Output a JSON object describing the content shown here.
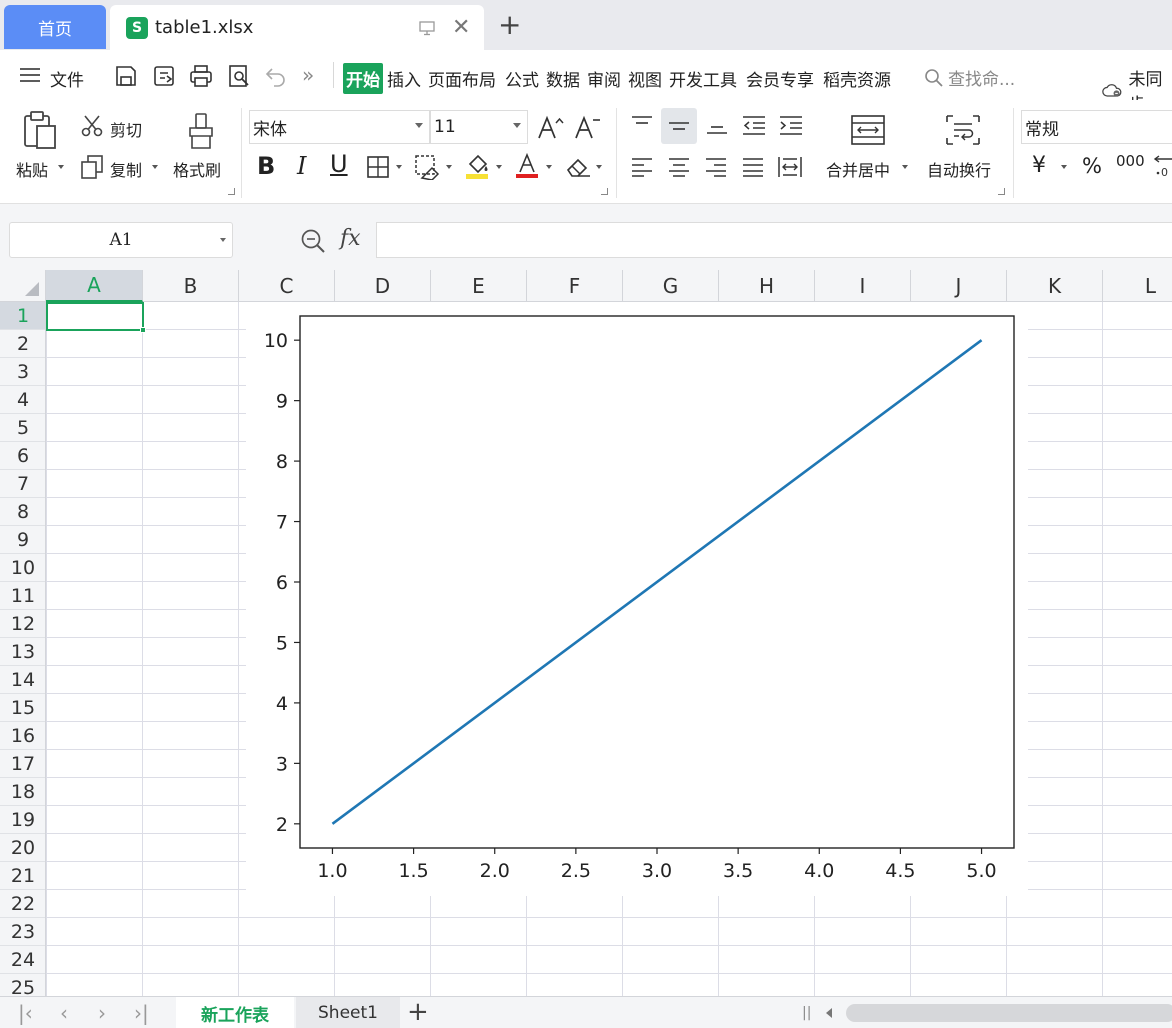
{
  "tabs": {
    "home": "首页",
    "file_name": "table1.xlsx"
  },
  "menu": {
    "file": "文件",
    "items": [
      "开始",
      "插入",
      "页面布局",
      "公式",
      "数据",
      "审阅",
      "视图",
      "开发工具",
      "会员专享",
      "稻壳资源"
    ],
    "active_index": 0,
    "search_placeholder": "查找命...",
    "cloud_status": "未同步"
  },
  "ribbon": {
    "paste": "粘贴",
    "cut": "剪切",
    "copy": "复制",
    "format_painter": "格式刷",
    "font_name": "宋体",
    "font_size": "11",
    "merge_center": "合并居中",
    "wrap_text": "自动换行",
    "number_format": "常规",
    "currency_symbol": "¥",
    "percent_symbol": "%",
    "thousands_symbol": "000"
  },
  "formula_bar": {
    "cell_ref": "A1",
    "fx_label": "fx",
    "formula": ""
  },
  "grid": {
    "columns": [
      "A",
      "B",
      "C",
      "D",
      "E",
      "F",
      "G",
      "H",
      "I",
      "J",
      "K",
      "L"
    ],
    "rows": [
      "1",
      "2",
      "3",
      "4",
      "5",
      "6",
      "7",
      "8",
      "9",
      "10",
      "11",
      "12",
      "13",
      "14",
      "15",
      "16",
      "17",
      "18",
      "19",
      "20",
      "21",
      "22",
      "23",
      "24",
      "25"
    ],
    "selected_column": "A",
    "selected_row": "1"
  },
  "chart_data": {
    "type": "line",
    "title": "",
    "xlabel": "",
    "ylabel": "",
    "x": [
      1,
      5
    ],
    "series": [
      {
        "values": [
          2,
          10
        ]
      }
    ],
    "xlim": [
      0.8,
      5.2
    ],
    "ylim": [
      1.6,
      10.4
    ],
    "xticks": [
      "1.0",
      "1.5",
      "2.0",
      "2.5",
      "3.0",
      "3.5",
      "4.0",
      "4.5",
      "5.0"
    ],
    "yticks": [
      "2",
      "3",
      "4",
      "5",
      "6",
      "7",
      "8",
      "9",
      "10"
    ],
    "line_color": "#1f77b4",
    "grid": false,
    "legend": "none"
  },
  "sheets": {
    "tabs": [
      "新工作表",
      "Sheet1"
    ],
    "active_index": 0,
    "add_label": "+"
  }
}
